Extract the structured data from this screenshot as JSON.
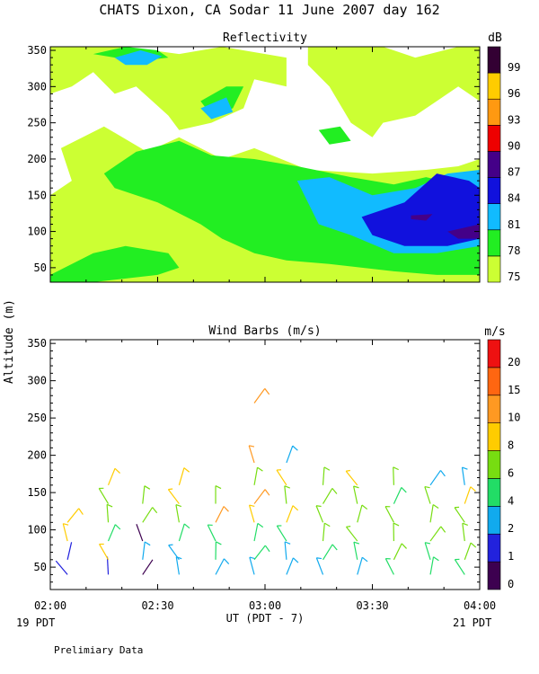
{
  "page": {
    "title": "CHATS Dixon, CA  Sodar  11 June 2007  day 162",
    "ylabel": "Altitude (m)",
    "xlabel": "UT  (PDT - 7)",
    "left_note": "19 PDT",
    "right_note": "21 PDT",
    "footer": "Prelimiary Data"
  },
  "chart_data": [
    {
      "type": "heatmap",
      "title": "Reflectivity",
      "x_ticks": [
        "02:00",
        "02:30",
        "03:00",
        "03:30",
        "04:00"
      ],
      "xlim_hours_ut": [
        2.0,
        4.0
      ],
      "y_ticks": [
        50,
        100,
        150,
        200,
        250,
        300,
        350
      ],
      "ylim": [
        30,
        355
      ],
      "grid": false,
      "colorbar": {
        "unit": "dB",
        "levels": [
          75,
          78,
          81,
          84,
          87,
          90,
          93,
          96,
          99
        ],
        "colors": [
          "#ccff33",
          "#22ee22",
          "#11bbff",
          "#1111dd",
          "#440088",
          "#ee0000",
          "#ff9911",
          "#ffcc00",
          "#330033"
        ]
      },
      "regions_db_min": [
        {
          "level": 75,
          "points": [
            [
              2.0,
              355
            ],
            [
              2.35,
              355
            ],
            [
              2.6,
              345
            ],
            [
              2.8,
              355
            ],
            [
              3.1,
              340
            ],
            [
              3.1,
              300
            ],
            [
              2.95,
              310
            ],
            [
              2.9,
              270
            ],
            [
              2.75,
              250
            ],
            [
              2.6,
              240
            ],
            [
              2.55,
              260
            ],
            [
              2.4,
              300
            ],
            [
              2.3,
              290
            ],
            [
              2.2,
              320
            ],
            [
              2.1,
              300
            ],
            [
              2.0,
              290
            ]
          ]
        },
        {
          "level": 75,
          "points": [
            [
              3.2,
              355
            ],
            [
              3.55,
              355
            ],
            [
              3.7,
              340
            ],
            [
              3.9,
              355
            ],
            [
              4.0,
              355
            ],
            [
              4.0,
              280
            ],
            [
              3.9,
              300
            ],
            [
              3.8,
              280
            ],
            [
              3.7,
              260
            ],
            [
              3.55,
              250
            ],
            [
              3.5,
              230
            ],
            [
              3.4,
              250
            ],
            [
              3.3,
              300
            ],
            [
              3.2,
              330
            ]
          ]
        },
        {
          "level": 75,
          "points": [
            [
              2.05,
              215
            ],
            [
              2.25,
              245
            ],
            [
              2.45,
              210
            ],
            [
              2.6,
              230
            ],
            [
              2.8,
              200
            ],
            [
              2.95,
              215
            ],
            [
              3.2,
              185
            ],
            [
              3.5,
              180
            ],
            [
              3.75,
              185
            ],
            [
              3.9,
              190
            ],
            [
              4.0,
              200
            ],
            [
              4.0,
              30
            ],
            [
              2.0,
              30
            ],
            [
              2.0,
              150
            ],
            [
              2.1,
              170
            ]
          ]
        },
        {
          "level": 78,
          "points": [
            [
              2.4,
              210
            ],
            [
              2.6,
              225
            ],
            [
              2.75,
              205
            ],
            [
              2.95,
              200
            ],
            [
              3.15,
              190
            ],
            [
              3.4,
              175
            ],
            [
              3.6,
              165
            ],
            [
              3.75,
              175
            ],
            [
              3.9,
              165
            ],
            [
              4.0,
              165
            ],
            [
              4.0,
              40
            ],
            [
              3.8,
              40
            ],
            [
              3.6,
              45
            ],
            [
              3.3,
              55
            ],
            [
              3.1,
              60
            ],
            [
              2.95,
              70
            ],
            [
              2.8,
              90
            ],
            [
              2.7,
              110
            ],
            [
              2.5,
              140
            ],
            [
              2.3,
              160
            ],
            [
              2.25,
              180
            ]
          ]
        },
        {
          "level": 78,
          "points": [
            [
              2.2,
              345
            ],
            [
              2.35,
              355
            ],
            [
              2.5,
              350
            ],
            [
              2.55,
              340
            ],
            [
              2.4,
              335
            ]
          ]
        },
        {
          "level": 78,
          "points": [
            [
              2.7,
              280
            ],
            [
              2.82,
              300
            ],
            [
              2.9,
              300
            ],
            [
              2.85,
              270
            ],
            [
              2.75,
              260
            ]
          ]
        },
        {
          "level": 78,
          "points": [
            [
              3.25,
              240
            ],
            [
              3.35,
              245
            ],
            [
              3.4,
              225
            ],
            [
              3.3,
              220
            ]
          ]
        },
        {
          "level": 78,
          "points": [
            [
              2.0,
              40
            ],
            [
              2.2,
              70
            ],
            [
              2.35,
              80
            ],
            [
              2.55,
              70
            ],
            [
              2.6,
              50
            ],
            [
              2.5,
              40
            ],
            [
              2.2,
              30
            ],
            [
              2.0,
              30
            ]
          ]
        },
        {
          "level": 81,
          "points": [
            [
              3.15,
              170
            ],
            [
              3.3,
              175
            ],
            [
              3.5,
              150
            ],
            [
              3.7,
              160
            ],
            [
              3.85,
              180
            ],
            [
              4.0,
              185
            ],
            [
              4.0,
              80
            ],
            [
              3.8,
              70
            ],
            [
              3.6,
              70
            ],
            [
              3.4,
              95
            ],
            [
              3.25,
              110
            ],
            [
              3.2,
              140
            ]
          ]
        },
        {
          "level": 81,
          "points": [
            [
              2.3,
              340
            ],
            [
              2.42,
              350
            ],
            [
              2.52,
              342
            ],
            [
              2.45,
              330
            ],
            [
              2.35,
              330
            ]
          ]
        },
        {
          "level": 81,
          "points": [
            [
              2.7,
              270
            ],
            [
              2.82,
              285
            ],
            [
              2.85,
              265
            ],
            [
              2.75,
              255
            ]
          ]
        },
        {
          "level": 84,
          "points": [
            [
              3.65,
              140
            ],
            [
              3.8,
              180
            ],
            [
              3.95,
              170
            ],
            [
              4.0,
              160
            ],
            [
              4.0,
              90
            ],
            [
              3.85,
              80
            ],
            [
              3.65,
              80
            ],
            [
              3.5,
              95
            ],
            [
              3.45,
              120
            ]
          ]
        },
        {
          "level": 87,
          "points": [
            [
              3.85,
              100
            ],
            [
              4.0,
              110
            ],
            [
              4.0,
              90
            ],
            [
              3.9,
              90
            ]
          ]
        },
        {
          "level": 87,
          "points": [
            [
              3.68,
              122
            ],
            [
              3.78,
              124
            ],
            [
              3.75,
              115
            ],
            [
              3.68,
              117
            ]
          ]
        }
      ]
    },
    {
      "type": "scatter",
      "title": "Wind Barbs (m/s)",
      "x_ticks": [
        "02:00",
        "02:30",
        "03:00",
        "03:30",
        "04:00"
      ],
      "xlim_hours_ut": [
        2.0,
        4.0
      ],
      "y_ticks": [
        50,
        100,
        150,
        200,
        250,
        300,
        350
      ],
      "ylim": [
        20,
        355
      ],
      "grid": false,
      "colorbar": {
        "unit": "m/s",
        "levels": [
          0,
          1,
          2,
          4,
          6,
          8,
          10,
          15,
          20
        ],
        "colors": [
          "#3d0050",
          "#2222dd",
          "#11aaee",
          "#22dd66",
          "#77dd11",
          "#ffcc00",
          "#ff9922",
          "#ff6611",
          "#ee1111"
        ]
      },
      "profiles": [
        {
          "time": 2.08,
          "speed_by_height": [
            [
              40,
              1.2
            ],
            [
              60,
              1.5
            ],
            [
              85,
              8
            ],
            [
              110,
              8
            ]
          ]
        },
        {
          "time": 2.27,
          "speed_by_height": [
            [
              40,
              1.2
            ],
            [
              60,
              8
            ],
            [
              85,
              5
            ],
            [
              110,
              6
            ],
            [
              135,
              7
            ],
            [
              160,
              8
            ]
          ]
        },
        {
          "time": 2.43,
          "speed_by_height": [
            [
              40,
              0.5
            ],
            [
              60,
              2.5
            ],
            [
              85,
              0.5
            ],
            [
              110,
              7
            ],
            [
              135,
              7
            ]
          ]
        },
        {
          "time": 2.6,
          "speed_by_height": [
            [
              40,
              3
            ],
            [
              60,
              3
            ],
            [
              85,
              4
            ],
            [
              110,
              6
            ],
            [
              135,
              8
            ],
            [
              160,
              8
            ]
          ]
        },
        {
          "time": 2.77,
          "speed_by_height": [
            [
              40,
              3
            ],
            [
              60,
              4
            ],
            [
              85,
              5
            ],
            [
              110,
              10
            ],
            [
              135,
              6
            ]
          ]
        },
        {
          "time": 2.95,
          "speed_by_height": [
            [
              40,
              3
            ],
            [
              60,
              4
            ],
            [
              85,
              5
            ],
            [
              110,
              8
            ],
            [
              135,
              10
            ],
            [
              160,
              6
            ],
            [
              190,
              10
            ],
            [
              270,
              10
            ]
          ]
        },
        {
          "time": 3.1,
          "speed_by_height": [
            [
              40,
              3
            ],
            [
              60,
              3
            ],
            [
              85,
              4
            ],
            [
              110,
              8
            ],
            [
              135,
              6
            ],
            [
              160,
              8
            ],
            [
              190,
              2
            ]
          ]
        },
        {
          "time": 3.27,
          "speed_by_height": [
            [
              40,
              3
            ],
            [
              60,
              4
            ],
            [
              85,
              6
            ],
            [
              110,
              6
            ],
            [
              135,
              6
            ],
            [
              160,
              6
            ]
          ]
        },
        {
          "time": 3.43,
          "speed_by_height": [
            [
              40,
              3
            ],
            [
              60,
              4
            ],
            [
              85,
              6
            ],
            [
              110,
              6
            ],
            [
              135,
              6
            ],
            [
              160,
              8
            ]
          ]
        },
        {
          "time": 3.6,
          "speed_by_height": [
            [
              40,
              4
            ],
            [
              60,
              6
            ],
            [
              85,
              7
            ],
            [
              110,
              7
            ],
            [
              135,
              5
            ],
            [
              160,
              6
            ]
          ]
        },
        {
          "time": 3.77,
          "speed_by_height": [
            [
              40,
              4
            ],
            [
              60,
              5
            ],
            [
              85,
              6
            ],
            [
              110,
              7
            ],
            [
              135,
              7
            ],
            [
              160,
              3
            ]
          ]
        },
        {
          "time": 3.93,
          "speed_by_height": [
            [
              40,
              5
            ],
            [
              60,
              6
            ],
            [
              85,
              7
            ],
            [
              110,
              7
            ],
            [
              135,
              8
            ],
            [
              160,
              2
            ]
          ]
        }
      ]
    }
  ]
}
